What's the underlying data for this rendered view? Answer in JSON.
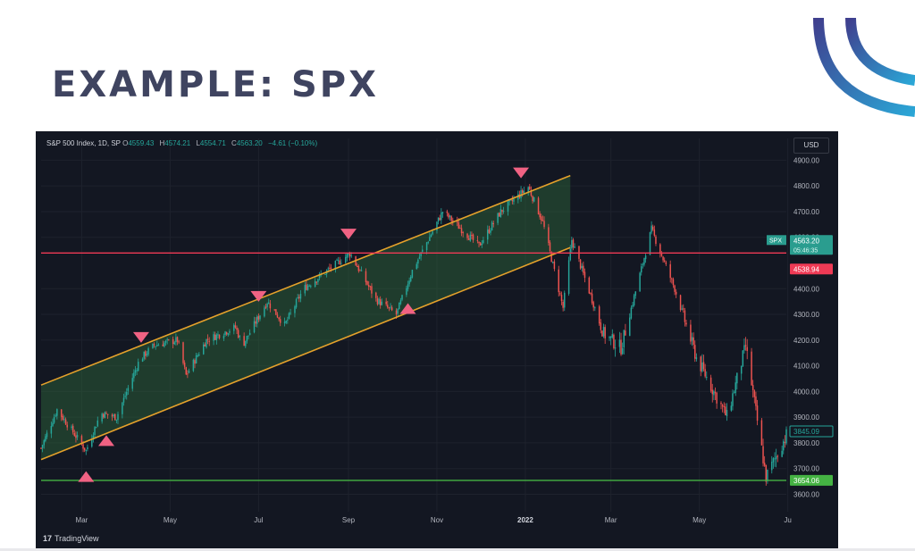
{
  "slide": {
    "title": "EXAMPLE: SPX"
  },
  "legend": {
    "symbol": "S&P 500 Index, 1D, SP",
    "open_label": "O",
    "open": "4559.43",
    "high_label": "H",
    "high": "4574.21",
    "low_label": "L",
    "low": "4554.71",
    "close_label": "C",
    "close": "4563.20",
    "change": "−4.61 (−0.10%)"
  },
  "currency": "USD",
  "brand": {
    "mark": "17",
    "name": "TradingView"
  },
  "colors": {
    "background": "#131722",
    "up": "#26a69a",
    "down": "#ef5350",
    "channel_line": "#e5a12b",
    "channel_fill": "#2e6b3c",
    "resistance": "#ef3a55",
    "support": "#45b343",
    "marker": "#f06283",
    "title": "#3f4460"
  },
  "chart_data": {
    "type": "candlestick",
    "title": "S&P 500 Index, 1D, SP",
    "xlabel": "",
    "ylabel": "",
    "y_ticks": [
      "4900.00",
      "4800.00",
      "4700.00",
      "4600.00",
      "4400.00",
      "4300.00",
      "4200.00",
      "4100.00",
      "4000.00",
      "3900.00",
      "3800.00",
      "3700.00",
      "3600.00"
    ],
    "y_range": [
      3560,
      4950
    ],
    "x_ticks": [
      "Mar",
      "May",
      "Jul",
      "Sep",
      "Nov",
      "2022",
      "Mar",
      "May",
      "Ju"
    ],
    "x_tick_dates": [
      "2021-03-01",
      "2021-05-01",
      "2021-07-01",
      "2021-09-01",
      "2021-11-01",
      "2022-01-01",
      "2022-03-01",
      "2022-05-01",
      "2022-07-01"
    ],
    "x_range": [
      "2021-02-01",
      "2022-06-30"
    ],
    "close_path": [
      [
        "2021-02-01",
        3780
      ],
      [
        "2021-02-12",
        3930
      ],
      [
        "2021-03-04",
        3770
      ],
      [
        "2021-03-14",
        3915
      ],
      [
        "2021-03-25",
        3900
      ],
      [
        "2021-04-10",
        4125
      ],
      [
        "2021-04-20",
        4180
      ],
      [
        "2021-05-06",
        4200
      ],
      [
        "2021-05-12",
        4063
      ],
      [
        "2021-05-26",
        4200
      ],
      [
        "2021-06-15",
        4250
      ],
      [
        "2021-06-20",
        4180
      ],
      [
        "2021-07-07",
        4350
      ],
      [
        "2021-07-19",
        4258
      ],
      [
        "2021-08-01",
        4400
      ],
      [
        "2021-09-02",
        4537
      ],
      [
        "2021-09-20",
        4358
      ],
      [
        "2021-10-04",
        4300
      ],
      [
        "2021-10-15",
        4470
      ],
      [
        "2021-11-05",
        4700
      ],
      [
        "2021-11-30",
        4567
      ],
      [
        "2021-12-15",
        4700
      ],
      [
        "2022-01-03",
        4796
      ],
      [
        "2022-01-13",
        4660
      ],
      [
        "2022-01-27",
        4326
      ],
      [
        "2022-02-02",
        4590
      ],
      [
        "2022-02-24",
        4225
      ],
      [
        "2022-03-08",
        4170
      ],
      [
        "2022-03-29",
        4631
      ],
      [
        "2022-04-14",
        4400
      ],
      [
        "2022-04-29",
        4131
      ],
      [
        "2022-05-20",
        3901
      ],
      [
        "2022-06-02",
        4176
      ],
      [
        "2022-06-16",
        3666
      ],
      [
        "2022-06-30",
        3830
      ]
    ],
    "channel": {
      "upper": [
        [
          "2021-02-01",
          4025
        ],
        [
          "2022-02-01",
          4840
        ]
      ],
      "lower": [
        [
          "2021-02-01",
          3735
        ],
        [
          "2022-02-01",
          4560
        ]
      ]
    },
    "horizontal_levels": [
      {
        "value": 4538.94,
        "label": "4538.94",
        "color": "#ef3a55"
      },
      {
        "value": 3654.06,
        "label": "3654.06",
        "color": "#45b343"
      }
    ],
    "price_labels": [
      {
        "tag": "SPX",
        "value": 4563.2,
        "label": "4563.20",
        "sub": "05:46:35"
      },
      {
        "value": 3845.09,
        "label": "3845.09"
      }
    ],
    "markers": [
      {
        "date": "2021-03-04",
        "dir": "up"
      },
      {
        "date": "2021-03-18",
        "dir": "up"
      },
      {
        "date": "2021-04-11",
        "dir": "down"
      },
      {
        "date": "2021-07-01",
        "dir": "down"
      },
      {
        "date": "2021-09-01",
        "dir": "down"
      },
      {
        "date": "2021-10-12",
        "dir": "up"
      },
      {
        "date": "2021-12-29",
        "dir": "down"
      }
    ]
  }
}
